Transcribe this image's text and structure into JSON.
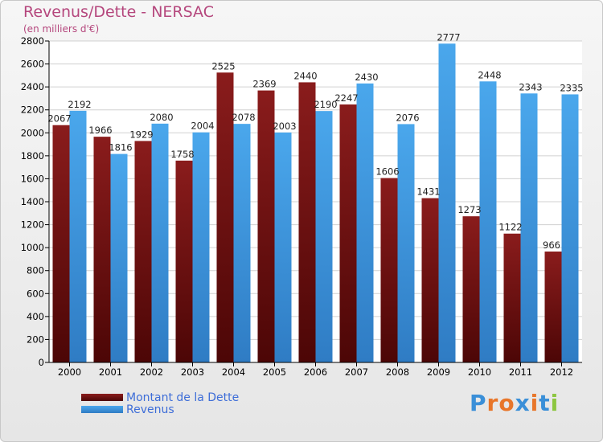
{
  "chart_data": {
    "type": "bar",
    "title": "Revenus/Dette - NERSAC",
    "subtitle": "(en milliers d'€)",
    "categories": [
      "2000",
      "2001",
      "2002",
      "2003",
      "2004",
      "2005",
      "2006",
      "2007",
      "2008",
      "2009",
      "2010",
      "2011",
      "2012"
    ],
    "series": [
      {
        "name": "Montant de la Dette",
        "color": "#8b1a1a",
        "values": [
          2067,
          1966,
          1929,
          1758,
          2525,
          2369,
          2440,
          2247,
          1606,
          1431,
          1273,
          1122,
          966
        ]
      },
      {
        "name": "Revenus",
        "color": "#3a97e0",
        "values": [
          2192,
          1816,
          2080,
          2004,
          2078,
          2003,
          2190,
          2430,
          2076,
          2777,
          2448,
          2343,
          2335
        ]
      }
    ],
    "ylim": [
      0,
      2800
    ],
    "ytick_step": 200,
    "grid": true,
    "legend": "bottom-left",
    "xlabel": "",
    "ylabel": ""
  },
  "logo": {
    "text": "Proxiti",
    "colors": [
      "#3a8fd8",
      "#e8762a",
      "#e8762a",
      "#3a8fd8",
      "#e8762a",
      "#3a8fd8",
      "#8cc63f"
    ]
  }
}
